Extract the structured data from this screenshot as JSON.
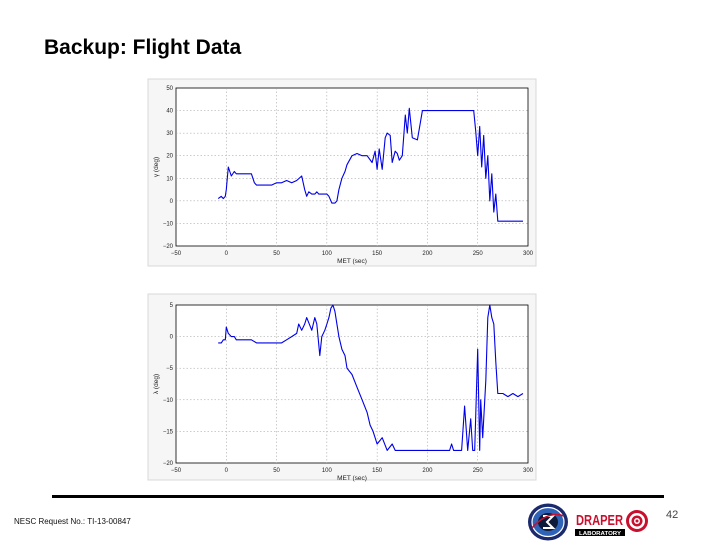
{
  "slide": {
    "title": "Backup: Flight Data",
    "footer_ref": "NESC Request No.: TI-13-00847",
    "page_number": "42",
    "logos": [
      {
        "name": "nesc-seal",
        "icon": "nesc-seal-icon"
      },
      {
        "name": "draper-laboratory",
        "icon": "draper-laboratory-logo",
        "text": "DRAPER",
        "subtext": "LABORATORY",
        "color": "#c8102e"
      }
    ]
  },
  "series_color": "#0000e6",
  "chart_data": [
    {
      "type": "line",
      "title": "",
      "xlabel": "MET (sec)",
      "ylabel": "γ (deg)",
      "xlim": [
        -50,
        300
      ],
      "ylim": [
        -20,
        50
      ],
      "xticks": [
        -50,
        0,
        50,
        100,
        150,
        200,
        250,
        300
      ],
      "yticks": [
        -20,
        -10,
        0,
        10,
        20,
        30,
        40,
        50
      ],
      "grid": true,
      "series": [
        {
          "name": "",
          "x": [
            -8,
            -5,
            -3,
            -1,
            0,
            2,
            5,
            8,
            10,
            15,
            20,
            25,
            28,
            30,
            35,
            40,
            45,
            50,
            55,
            60,
            65,
            70,
            75,
            78,
            80,
            82,
            85,
            88,
            90,
            92,
            95,
            100,
            102,
            105,
            108,
            110,
            112,
            115,
            118,
            120,
            125,
            130,
            135,
            140,
            145,
            148,
            150,
            152,
            155,
            158,
            160,
            163,
            165,
            168,
            170,
            172,
            175,
            178,
            180,
            182,
            185,
            190,
            195,
            200,
            210,
            220,
            230,
            240,
            246,
            248,
            250,
            252,
            254,
            256,
            258,
            260,
            262,
            264,
            266,
            268,
            270,
            275,
            280,
            285,
            290,
            295
          ],
          "y": [
            1,
            2,
            1,
            2,
            5,
            15,
            11,
            13,
            12,
            12,
            12,
            12,
            8,
            7,
            7,
            7,
            7,
            8,
            8,
            9,
            8,
            9,
            11,
            5,
            2,
            4,
            3,
            3,
            4,
            3,
            3,
            3,
            2,
            -1,
            -1,
            0,
            5,
            10,
            13,
            16,
            20,
            21,
            20,
            20,
            17,
            22,
            14,
            23,
            14,
            28,
            30,
            29,
            17,
            22,
            21,
            18,
            20,
            38,
            30,
            41,
            28,
            27,
            40,
            40,
            40,
            40,
            40,
            40,
            40,
            31,
            20,
            33,
            15,
            29,
            10,
            20,
            0,
            12,
            -5,
            3,
            -9,
            -9,
            -9,
            -9,
            -9,
            -9
          ]
        }
      ]
    },
    {
      "type": "line",
      "title": "",
      "xlabel": "MET (sec)",
      "ylabel": "λ (deg)",
      "xlim": [
        -50,
        300
      ],
      "ylim": [
        -20,
        5
      ],
      "xticks": [
        -50,
        0,
        50,
        100,
        150,
        200,
        250,
        300
      ],
      "yticks": [
        -20,
        -15,
        -10,
        -5,
        0,
        5
      ],
      "grid": true,
      "series": [
        {
          "name": "",
          "x": [
            -8,
            -5,
            -3,
            -1,
            0,
            2,
            5,
            8,
            10,
            15,
            20,
            25,
            30,
            40,
            50,
            55,
            60,
            65,
            70,
            72,
            75,
            78,
            80,
            85,
            88,
            90,
            93,
            95,
            98,
            100,
            102,
            104,
            106,
            108,
            110,
            112,
            115,
            118,
            120,
            125,
            130,
            135,
            140,
            143,
            146,
            150,
            155,
            160,
            165,
            168,
            170,
            175,
            180,
            190,
            200,
            210,
            215,
            218,
            222,
            224,
            226,
            230,
            234,
            237,
            240,
            243,
            245,
            247,
            250,
            252,
            253,
            255,
            258,
            260,
            262,
            264,
            266,
            268,
            270,
            272,
            275,
            280,
            285,
            290,
            295
          ],
          "y": [
            -1,
            -1,
            -0.5,
            -0.5,
            1.5,
            0.5,
            0,
            0,
            -0.5,
            -0.5,
            -0.5,
            -0.5,
            -1,
            -1,
            -1,
            -1,
            -0.5,
            0,
            0.5,
            2,
            1,
            2,
            3,
            1,
            3,
            2,
            -3,
            0,
            1,
            2,
            3,
            4.5,
            5,
            4,
            2,
            0,
            -2,
            -3,
            -5,
            -6,
            -8,
            -10,
            -12,
            -14,
            -15,
            -17,
            -16,
            -18,
            -17,
            -18,
            -18,
            -18,
            -18,
            -18,
            -18,
            -18,
            -18,
            -18,
            -18,
            -17,
            -18,
            -18,
            -18,
            -11,
            -18,
            -13,
            -18,
            -18,
            -2,
            -18,
            -10,
            -16,
            -7,
            3,
            5,
            3,
            2,
            -4,
            -9,
            -9,
            -9,
            -9.5,
            -9,
            -9.5,
            -9
          ]
        }
      ]
    }
  ]
}
